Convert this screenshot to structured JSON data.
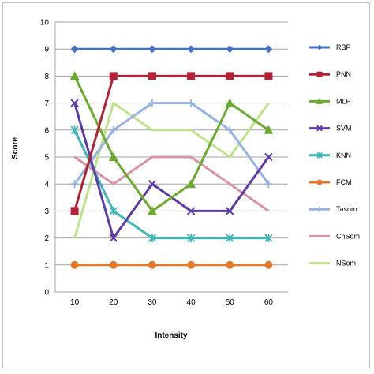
{
  "chart_data": {
    "type": "line",
    "title": "",
    "xlabel": "Intensity",
    "ylabel": "Score",
    "x": [
      10,
      20,
      30,
      40,
      50,
      60
    ],
    "ylim": [
      0,
      10
    ],
    "yticks": [
      0,
      1,
      2,
      3,
      4,
      5,
      6,
      7,
      8,
      9,
      10
    ],
    "grid": "horizontal",
    "legend_position": "right",
    "series": [
      {
        "name": "RBF",
        "color": "#4472c4",
        "marker": "diamond",
        "values": [
          9,
          9,
          9,
          9,
          9,
          9
        ]
      },
      {
        "name": "PNN",
        "color": "#b22234",
        "marker": "square",
        "values": [
          3,
          8,
          8,
          8,
          8,
          8
        ]
      },
      {
        "name": "MLP",
        "color": "#6aab2e",
        "marker": "triangle",
        "values": [
          8,
          5,
          3,
          4,
          7,
          6
        ]
      },
      {
        "name": "SVM",
        "color": "#5b3ca8",
        "marker": "x",
        "values": [
          7,
          2,
          4,
          3,
          3,
          5
        ]
      },
      {
        "name": "KNN",
        "color": "#3fb6b6",
        "marker": "star",
        "values": [
          6,
          3,
          2,
          2,
          2,
          2
        ]
      },
      {
        "name": "FCM",
        "color": "#e37a2a",
        "marker": "circle",
        "values": [
          1,
          1,
          1,
          1,
          1,
          1
        ]
      },
      {
        "name": "Tasom",
        "color": "#95b3e3",
        "marker": "plus",
        "values": [
          4,
          6,
          7,
          7,
          6,
          4
        ]
      },
      {
        "name": "ChSom",
        "color": "#d993a3",
        "marker": "none",
        "values": [
          5,
          4,
          5,
          5,
          4,
          3
        ]
      },
      {
        "name": "NSom",
        "color": "#bde38a",
        "marker": "none",
        "values": [
          2,
          7,
          6,
          6,
          5,
          7
        ]
      }
    ]
  }
}
